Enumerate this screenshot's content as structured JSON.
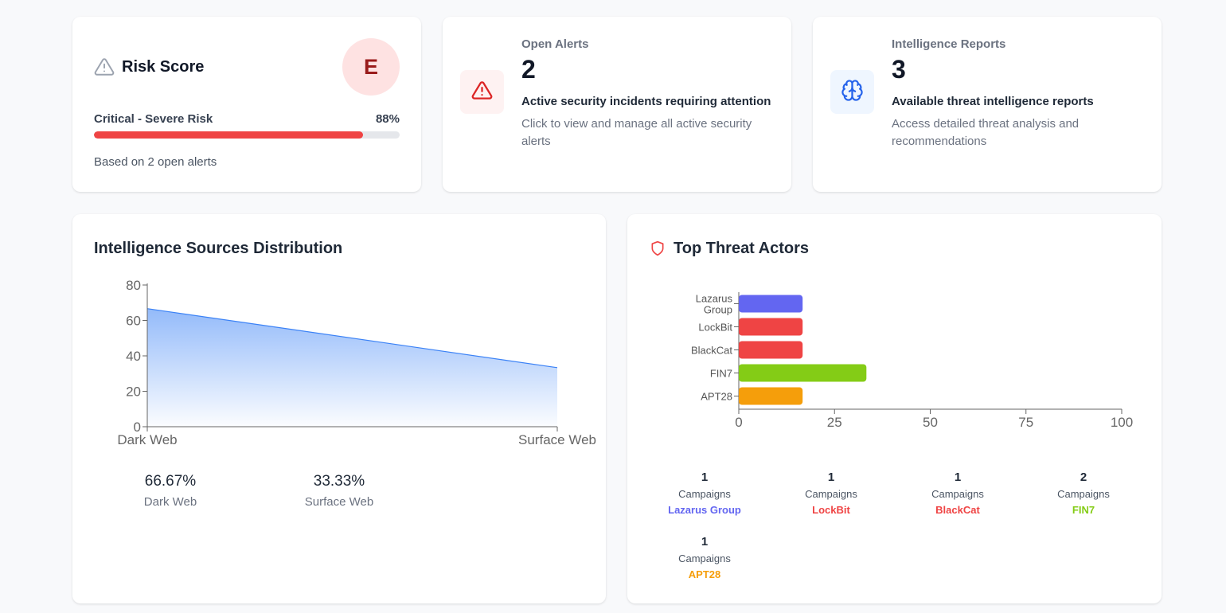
{
  "risk_score": {
    "title": "Risk Score",
    "grade": "E",
    "level": "Critical - Severe Risk",
    "percent_label": "88%",
    "percent_value": 88,
    "basis": "Based on 2 open alerts",
    "colors": {
      "bar": "#ef4444",
      "grade_bg": "#fee2e2",
      "grade_text": "#991b1b"
    },
    "icon": "warning-triangle-icon"
  },
  "open_alerts": {
    "label": "Open Alerts",
    "value": "2",
    "heading": "Active security incidents requiring attention",
    "description": "Click to view and manage all active security alerts",
    "icon": "alert-triangle-icon",
    "colors": {
      "icon": "#dc2626",
      "icon_bg": "#fef2f2"
    }
  },
  "intel_reports": {
    "label": "Intelligence Reports",
    "value": "3",
    "heading": "Available threat intelligence reports",
    "description": "Access detailed threat analysis and recommendations",
    "icon": "brain-icon",
    "colors": {
      "icon": "#2563eb",
      "icon_bg": "#eff6ff"
    }
  },
  "sources": {
    "title": "Intelligence Sources Distribution",
    "stats": [
      {
        "value": "66.67%",
        "label": "Dark Web"
      },
      {
        "value": "33.33%",
        "label": "Surface Web"
      }
    ]
  },
  "actors": {
    "title": "Top Threat Actors",
    "icon": "shield-icon",
    "stats": [
      {
        "count": "1",
        "campaigns": "Campaigns",
        "name": "Lazarus Group",
        "color": "#6366f1"
      },
      {
        "count": "1",
        "campaigns": "Campaigns",
        "name": "LockBit",
        "color": "#ef4444"
      },
      {
        "count": "1",
        "campaigns": "Campaigns",
        "name": "BlackCat",
        "color": "#ef4444"
      },
      {
        "count": "2",
        "campaigns": "Campaigns",
        "name": "FIN7",
        "color": "#84cc16"
      },
      {
        "count": "1",
        "campaigns": "Campaigns",
        "name": "APT28",
        "color": "#f59e0b"
      }
    ]
  },
  "chart_data": [
    {
      "type": "area",
      "categories": [
        "Dark Web",
        "Surface Web"
      ],
      "values": [
        66.67,
        33.33
      ],
      "ylim": [
        0,
        80
      ],
      "yticks": [
        0,
        20,
        40,
        60,
        80
      ],
      "grid": false,
      "colors": {
        "line": "#3b82f6",
        "fill": "#3b82f6"
      }
    },
    {
      "type": "bar",
      "orientation": "horizontal",
      "categories": [
        "Lazarus Group",
        "LockBit",
        "BlackCat",
        "FIN7",
        "APT28"
      ],
      "values": [
        16.67,
        16.67,
        16.67,
        33.33,
        16.67
      ],
      "colors": [
        "#6366f1",
        "#ef4444",
        "#ef4444",
        "#84cc16",
        "#f59e0b"
      ],
      "xlim": [
        0,
        100
      ],
      "xticks": [
        0,
        25,
        50,
        75,
        100
      ],
      "grid": false
    }
  ]
}
